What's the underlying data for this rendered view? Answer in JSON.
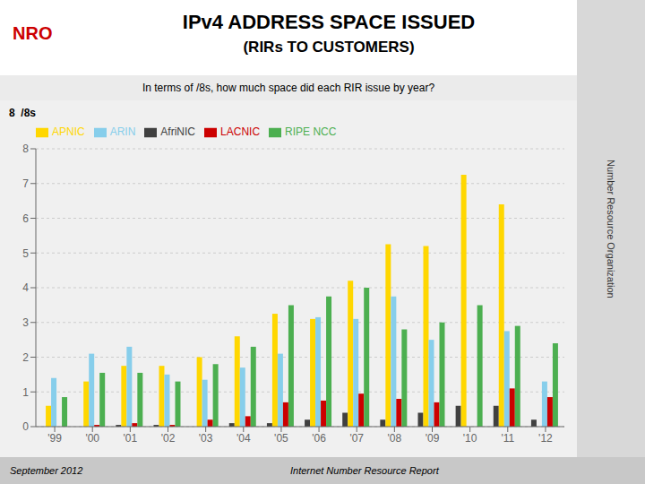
{
  "chart_data": {
    "type": "bar",
    "title": "IPv4 ADDRESS SPACE ISSUED\n(RIRs TO CUSTOMERS)",
    "subtitle": "In terms of /8s, how much space did each RIR issue by year?",
    "ylabel": "8  /8s",
    "categories": [
      "'99",
      "'00",
      "'01",
      "'02",
      "'03",
      "'04",
      "'05",
      "'06",
      "'07",
      "'08",
      "'09",
      "'10",
      "'11",
      "'12"
    ],
    "series": [
      {
        "name": "AfriNIC",
        "color": "#404040",
        "values": [
          0.0,
          0.0,
          0.05,
          0.05,
          0.0,
          0.1,
          0.1,
          0.2,
          0.4,
          0.2,
          0.4,
          0.6,
          0.6,
          0.2
        ]
      },
      {
        "name": "APNIC",
        "color": "#FFD700",
        "values": [
          0.6,
          1.3,
          1.75,
          1.75,
          2.0,
          2.6,
          3.25,
          3.1,
          4.2,
          5.25,
          5.2,
          7.25,
          6.4,
          0.0
        ]
      },
      {
        "name": "ARIN",
        "color": "#87CEEB",
        "values": [
          1.4,
          2.1,
          2.3,
          1.5,
          1.35,
          1.7,
          2.1,
          3.15,
          3.1,
          3.75,
          2.5,
          0.0,
          2.75,
          1.3
        ]
      },
      {
        "name": "LACNIC",
        "color": "#CC0000",
        "values": [
          0.0,
          0.05,
          0.1,
          0.05,
          0.2,
          0.3,
          0.7,
          0.75,
          0.95,
          0.8,
          0.7,
          0.0,
          1.1,
          0.85
        ]
      },
      {
        "name": "RIPE NCC",
        "color": "#4CAF50",
        "values": [
          0.85,
          1.55,
          1.55,
          1.3,
          1.8,
          2.3,
          3.5,
          3.75,
          4.0,
          2.8,
          3.0,
          3.5,
          2.9,
          2.4
        ]
      }
    ],
    "ylim": [
      0,
      8
    ],
    "yticks": [
      0,
      1,
      2,
      3,
      4,
      5,
      6,
      7,
      8
    ],
    "grid": true,
    "legend": "top",
    "annotations": [
      "September 2012",
      "Internet Number Resource Report",
      "Number Resource Organization",
      "NRO"
    ]
  }
}
